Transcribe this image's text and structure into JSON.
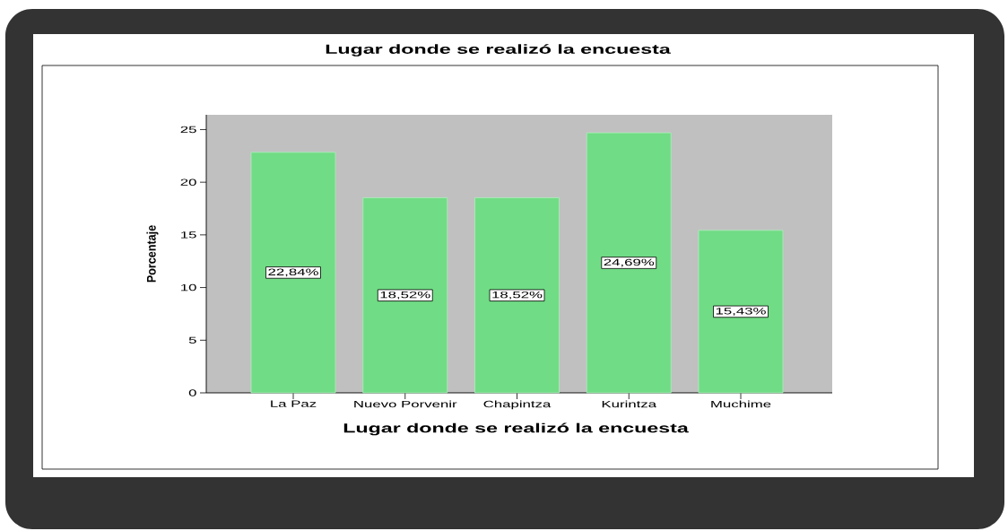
{
  "chart_data": {
    "type": "bar",
    "title": "Lugar donde se realizó la encuesta",
    "xlabel": "Lugar donde se realizó la encuesta",
    "ylabel": "Porcentaje",
    "categories": [
      "La Paz",
      "Nuevo Porvenir",
      "Chapintza",
      "Kurintza",
      "Muchime"
    ],
    "values": [
      22.84,
      18.52,
      18.52,
      24.69,
      15.43
    ],
    "value_labels": [
      "22,84%",
      "18,52%",
      "18,52%",
      "24,69%",
      "15,43%"
    ],
    "color": "#70dc85",
    "ylim": [
      0,
      26.4
    ],
    "yticks": [
      0,
      5,
      10,
      15,
      20,
      25
    ]
  }
}
